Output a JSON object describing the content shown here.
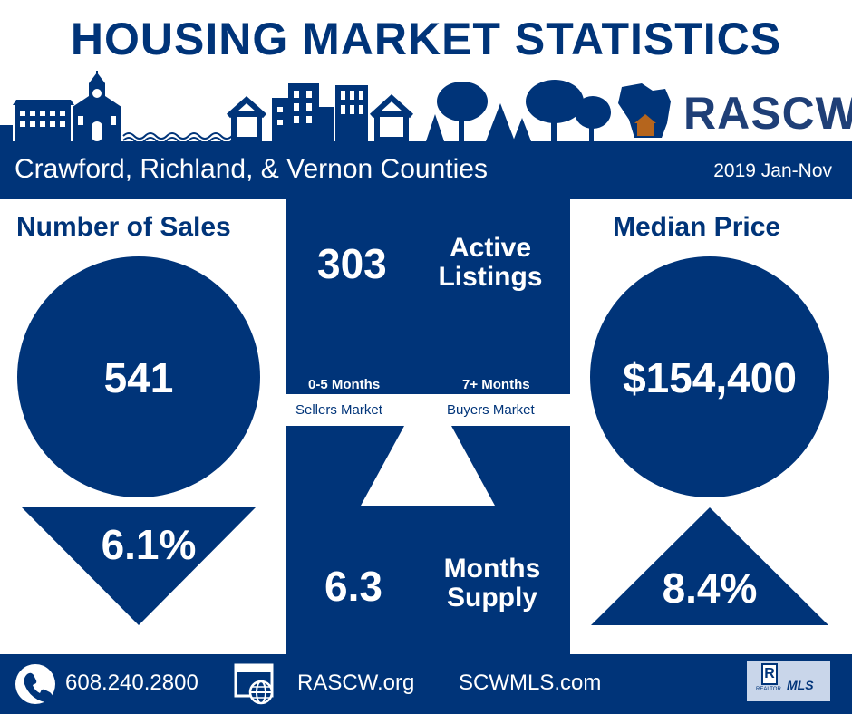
{
  "header": {
    "title": "HOUSING MARKET STATISTICS",
    "brand": "RASCW",
    "region": "Crawford, Richland, & Vernon Counties",
    "period": "2019 Jan-Nov"
  },
  "sales": {
    "heading": "Number of Sales",
    "value": "541",
    "change": "6.1%",
    "direction": "down"
  },
  "median": {
    "heading": "Median Price",
    "value": "$154,400",
    "change": "8.4%",
    "direction": "up"
  },
  "listings": {
    "value": "303",
    "label_line1": "Active",
    "label_line2": "Listings"
  },
  "market_scale": {
    "sellers_range": "0-5 Months",
    "sellers_label": "Sellers Market",
    "buyers_range": "7+ Months",
    "buyers_label": "Buyers Market"
  },
  "supply": {
    "value": "6.3",
    "label_line1": "Months",
    "label_line2": "Supply"
  },
  "footer": {
    "phone": "608.240.2800",
    "site1": "RASCW.org",
    "site2": "SCWMLS.com",
    "mls_logo_text": "MLS",
    "realtor_logo_text": "REALTOR"
  },
  "colors": {
    "primary": "#003479",
    "accent_house": "#b5651d",
    "white": "#ffffff"
  },
  "icons": [
    "phone-icon",
    "web-globe-icon",
    "realtor-logo-icon",
    "mls-logo-icon",
    "wisconsin-house-icon"
  ]
}
